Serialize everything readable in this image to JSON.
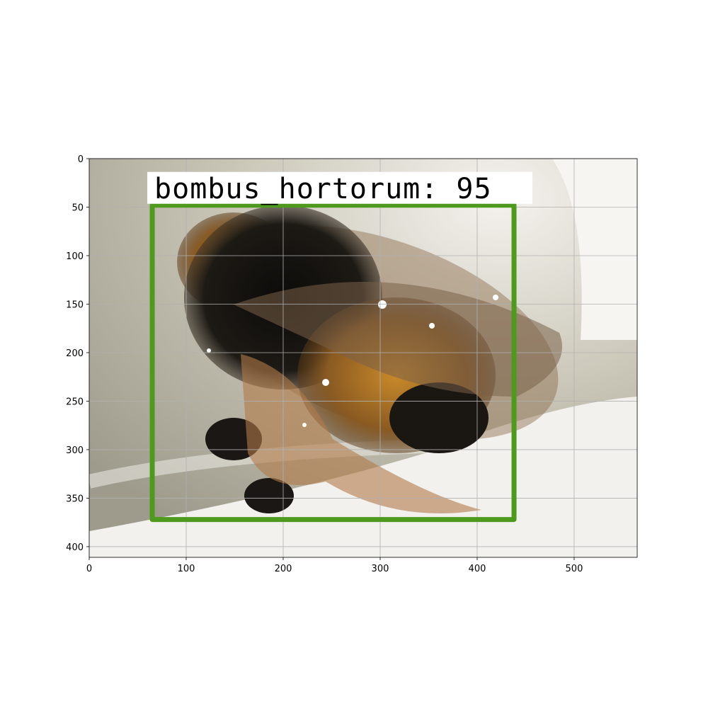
{
  "chart_data": {
    "type": "image",
    "xlim": [
      0,
      565
    ],
    "ylim": [
      411,
      0
    ],
    "xticks": [
      0,
      100,
      200,
      300,
      400,
      500
    ],
    "yticks": [
      0,
      50,
      100,
      150,
      200,
      250,
      300,
      350,
      400
    ],
    "grid": true,
    "box": {
      "label": "bombus_hortorum: 95",
      "x": [
        65,
        438
      ],
      "y": [
        48,
        372
      ],
      "color": "#4e9a1c"
    }
  }
}
